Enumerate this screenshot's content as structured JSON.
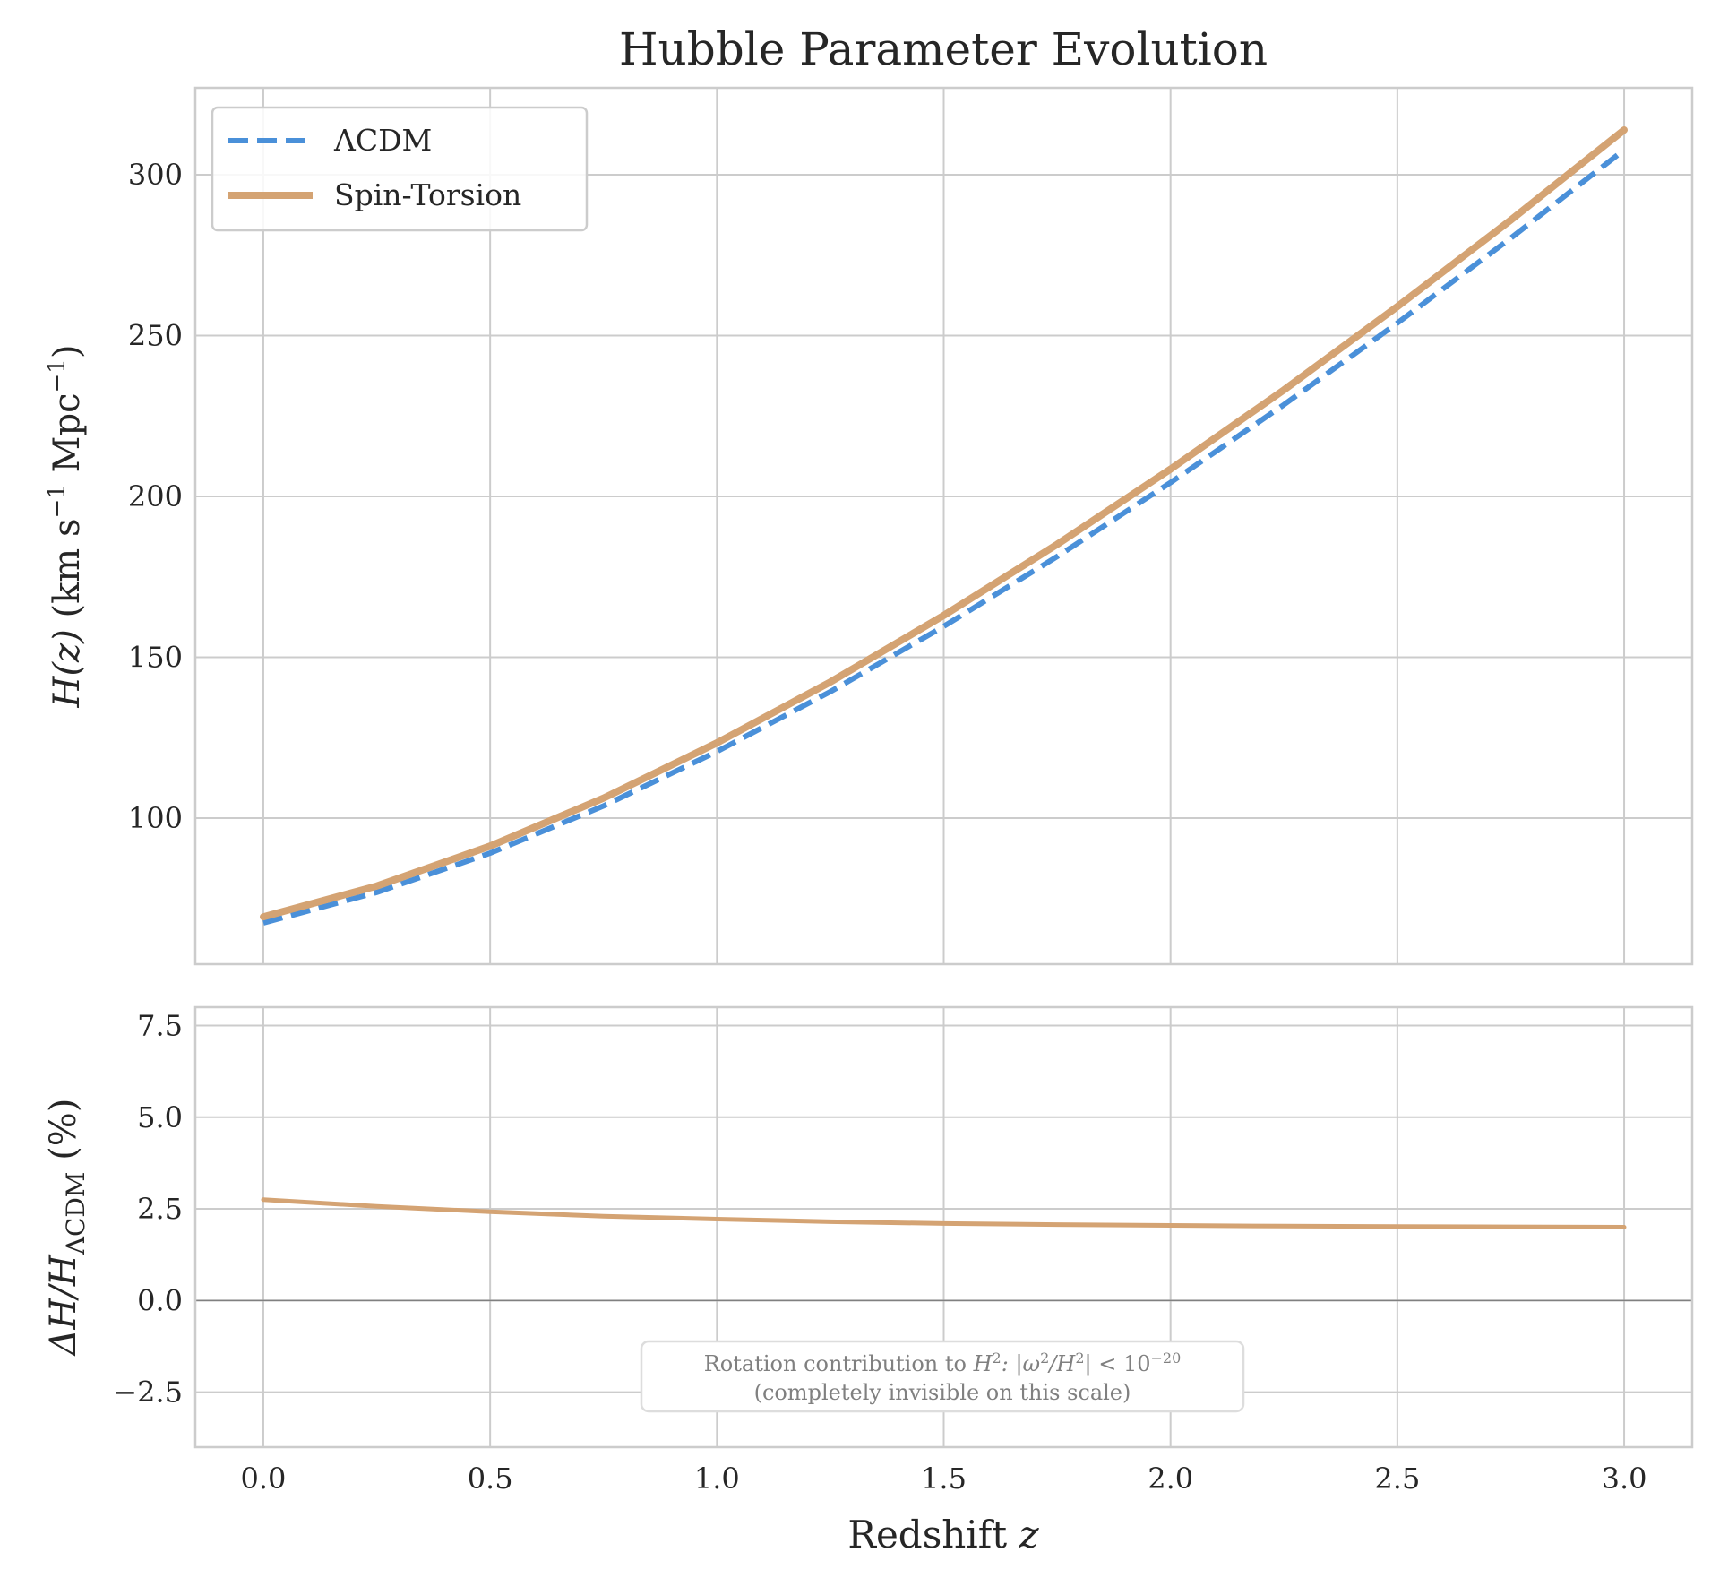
{
  "chart_data": [
    {
      "type": "line",
      "title": "Hubble Parameter Evolution",
      "xlabel": "",
      "ylabel": {
        "var": "H",
        "arg": "(z)",
        "units_a": " (km s",
        "exp1": "−1",
        "units_b": " Mpc",
        "exp2": "−1",
        "close": ")"
      },
      "xlim": [
        -0.15,
        3.15
      ],
      "ylim": [
        54.6,
        327
      ],
      "xticks": [
        0.0,
        0.5,
        1.0,
        1.5,
        2.0,
        2.5,
        3.0
      ],
      "yticks": [
        100,
        150,
        200,
        250,
        300
      ],
      "ytick_labels": [
        "100",
        "150",
        "200",
        "250",
        "300"
      ],
      "grid": true,
      "legend_position": "top-left",
      "x": [
        0,
        0.25,
        0.5,
        0.75,
        1.0,
        1.25,
        1.5,
        1.75,
        2.0,
        2.25,
        2.5,
        2.75,
        3.0
      ],
      "series": [
        {
          "name": "ΛCDM",
          "style": "dashed",
          "color": "#4a90d9",
          "values": [
            67.4,
            76.9,
            89.1,
            103.8,
            120.7,
            139.3,
            159.6,
            181.3,
            204.3,
            228.5,
            253.9,
            280.3,
            307.7
          ]
        },
        {
          "name": "Spin-Torsion",
          "style": "solid",
          "color": "#d4a373",
          "values": [
            69.3,
            78.9,
            91.3,
            106.2,
            123.4,
            142.3,
            163.0,
            185.1,
            208.5,
            233.1,
            259.0,
            285.9,
            313.9
          ]
        }
      ]
    },
    {
      "type": "line",
      "xlabel": {
        "text": "Redshift ",
        "var": "z"
      },
      "ylabel": {
        "delta": "ΔH/H",
        "sub": "ΛCDM",
        "rest": " (%)"
      },
      "xlim": [
        -0.15,
        3.15
      ],
      "ylim": [
        -4.0,
        8.0
      ],
      "xticks": [
        0.0,
        0.5,
        1.0,
        1.5,
        2.0,
        2.5,
        3.0
      ],
      "xtick_labels": [
        "0.0",
        "0.5",
        "1.0",
        "1.5",
        "2.0",
        "2.5",
        "3.0"
      ],
      "yticks": [
        -2.5,
        0.0,
        2.5,
        5.0,
        7.5
      ],
      "ytick_labels": [
        "−2.5",
        "0.0",
        "2.5",
        "5.0",
        "7.5"
      ],
      "grid": true,
      "reference_line": 0,
      "x": [
        0,
        0.25,
        0.5,
        0.75,
        1.0,
        1.25,
        1.5,
        1.75,
        2.0,
        2.25,
        2.5,
        2.75,
        3.0
      ],
      "series": [
        {
          "name": "Spin-Torsion",
          "color": "#d4a373",
          "values": [
            2.75,
            2.57,
            2.42,
            2.3,
            2.22,
            2.15,
            2.1,
            2.07,
            2.05,
            2.03,
            2.02,
            2.01,
            2.0
          ]
        }
      ],
      "annotation": {
        "line1_a": "Rotation contribution to ",
        "line1_b": "H",
        "line1_c": "2",
        "line1_d": ": |ω",
        "line1_e": "2",
        "line1_f": "/H",
        "line1_g": "2",
        "line1_h": "| < 10",
        "line1_i": "−20",
        "line2": "(completely invisible on this scale)"
      }
    }
  ]
}
